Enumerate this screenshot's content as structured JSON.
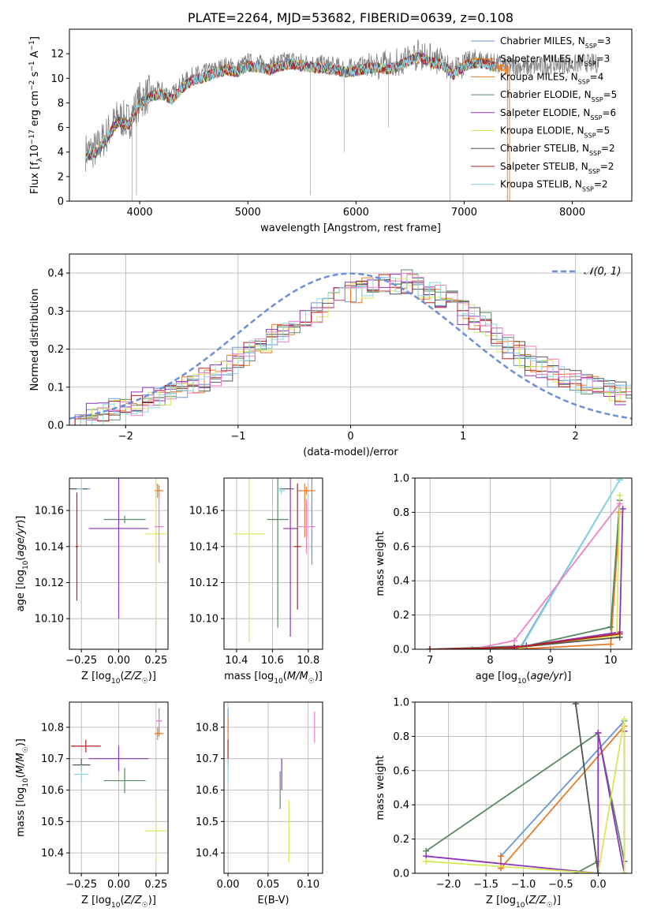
{
  "colors": {
    "Chabrier MILES": "#6a96d8",
    "Salpeter MILES": "#e87b2a",
    "Kroupa MILES": "#e87b2a",
    "Chabrier ELODIE": "#5a8a64",
    "Salpeter ELODIE": "#8e35b8",
    "Kroupa ELODIE": "#d8e858",
    "Chabrier STELIB": "#555555",
    "Salpeter STELIB": "#b52020",
    "Kroupa STELIB": "#8ad6e4",
    "pink": "#ee80c8",
    "normal": "#6c8fd6",
    "grid": "#b0b0b0"
  },
  "chart_data": [
    {
      "type": "line",
      "title": "PLATE=2264, MJD=53682, FIBERID=0639, z=0.108",
      "xlabel": "wavelength [Angstrom, rest frame]",
      "ylabel": "Flux [f_λ 10^-17 erg cm^-2 s^-1 A^-1]",
      "xlim": [
        3350,
        8550
      ],
      "ylim": [
        0,
        14
      ],
      "xticks": [
        "4000",
        "5000",
        "6000",
        "7000",
        "8000"
      ],
      "yticks": [
        "0",
        "2",
        "4",
        "6",
        "8",
        "10",
        "12"
      ],
      "grid": false,
      "legend": "top-right",
      "legend_entries": [
        {
          "name": "Chabrier MILES",
          "nssp": "3"
        },
        {
          "name": "Salpeter MILES",
          "nssp": "3"
        },
        {
          "name": "Kroupa MILES",
          "nssp": "4"
        },
        {
          "name": "Chabrier ELODIE",
          "nssp": "5"
        },
        {
          "name": "Salpeter ELODIE",
          "nssp": "6"
        },
        {
          "name": "Kroupa ELODIE",
          "nssp": "5"
        },
        {
          "name": "Chabrier STELIB",
          "nssp": "2"
        },
        {
          "name": "Salpeter STELIB",
          "nssp": "2"
        },
        {
          "name": "Kroupa STELIB",
          "nssp": "2"
        }
      ],
      "continuum": [
        [
          3500,
          4.0
        ],
        [
          3600,
          4.2
        ],
        [
          3700,
          5.5
        ],
        [
          3800,
          6.8
        ],
        [
          3900,
          6.5
        ],
        [
          4000,
          8.2
        ],
        [
          4100,
          8.8
        ],
        [
          4200,
          9.0
        ],
        [
          4300,
          8.6
        ],
        [
          4400,
          9.6
        ],
        [
          4500,
          10.2
        ],
        [
          4600,
          10.4
        ],
        [
          4700,
          10.7
        ],
        [
          4800,
          11.0
        ],
        [
          4900,
          10.8
        ],
        [
          5000,
          11.3
        ],
        [
          5100,
          11.2
        ],
        [
          5200,
          11.0
        ],
        [
          5300,
          11.3
        ],
        [
          5400,
          11.5
        ],
        [
          5500,
          11.3
        ],
        [
          5600,
          11.2
        ],
        [
          5700,
          11.1
        ],
        [
          5800,
          11.0
        ],
        [
          5900,
          10.8
        ],
        [
          6000,
          10.9
        ],
        [
          6100,
          11.1
        ],
        [
          6200,
          11.2
        ],
        [
          6300,
          11.0
        ],
        [
          6400,
          11.3
        ],
        [
          6500,
          11.8
        ],
        [
          6600,
          12.0
        ],
        [
          6700,
          11.6
        ],
        [
          6800,
          11.4
        ],
        [
          6900,
          10.6
        ],
        [
          7000,
          11.3
        ],
        [
          7100,
          11.6
        ],
        [
          7200,
          11.5
        ],
        [
          7300,
          11.2
        ],
        [
          7400,
          11.0
        ],
        [
          7500,
          11.0
        ],
        [
          7600,
          10.9
        ],
        [
          7700,
          11.0
        ],
        [
          7800,
          11.1
        ],
        [
          7900,
          11.2
        ],
        [
          8000,
          11.1
        ],
        [
          8100,
          11.3
        ],
        [
          8200,
          11.2
        ]
      ]
    },
    {
      "type": "bar",
      "xlabel": "(data-model)/error",
      "ylabel": "Normed distribution",
      "xlim": [
        -2.5,
        2.5
      ],
      "ylim": [
        0,
        0.45
      ],
      "xticks": [
        "−2",
        "−1",
        "0",
        "1",
        "2"
      ],
      "yticks": [
        "0.0",
        "0.1",
        "0.2",
        "0.3",
        "0.4"
      ],
      "grid": true,
      "legend": "top-right",
      "normal_label": "𝒩(0, 1)",
      "bins": [
        -2.5,
        -2.4,
        -2.3,
        -2.2,
        -2.1,
        -2.0,
        -1.9,
        -1.8,
        -1.7,
        -1.6,
        -1.5,
        -1.4,
        -1.3,
        -1.2,
        -1.1,
        -1.0,
        -0.9,
        -0.8,
        -0.7,
        -0.6,
        -0.5,
        -0.4,
        -0.3,
        -0.2,
        -0.1,
        0.0,
        0.1,
        0.2,
        0.3,
        0.4,
        0.5,
        0.6,
        0.7,
        0.8,
        0.9,
        1.0,
        1.1,
        1.2,
        1.3,
        1.4,
        1.5,
        1.6,
        1.7,
        1.8,
        1.9,
        2.0,
        2.1,
        2.2,
        2.3,
        2.4,
        2.5
      ],
      "histogram": [
        0.02,
        0.03,
        0.03,
        0.04,
        0.05,
        0.05,
        0.06,
        0.07,
        0.08,
        0.09,
        0.1,
        0.11,
        0.12,
        0.14,
        0.16,
        0.18,
        0.2,
        0.22,
        0.24,
        0.26,
        0.28,
        0.3,
        0.31,
        0.33,
        0.34,
        0.35,
        0.36,
        0.37,
        0.37,
        0.38,
        0.37,
        0.36,
        0.35,
        0.33,
        0.31,
        0.29,
        0.27,
        0.25,
        0.22,
        0.2,
        0.18,
        0.16,
        0.15,
        0.13,
        0.12,
        0.11,
        0.1,
        0.09,
        0.09,
        0.08
      ]
    },
    {
      "type": "scatter",
      "xlabel": "Z [log10(Z/Z☉)]",
      "ylabel": "age  [log10(age/yr)]",
      "xlim": [
        -0.33,
        0.33
      ],
      "ylim": [
        10.083,
        10.178
      ],
      "xticks": [
        "−0.25",
        "0.00",
        "0.25"
      ],
      "yticks": [
        "10.10",
        "10.12",
        "10.14",
        "10.16"
      ],
      "grid": true,
      "points": [
        {
          "model": "Chabrier MILES",
          "x": -0.27,
          "y": 10.172,
          "xerr": 0.08,
          "yerr": 0.0
        },
        {
          "model": "Salpeter MILES",
          "x": 0.26,
          "y": 10.171,
          "xerr": 0.02,
          "yerr": 0.004
        },
        {
          "model": "Kroupa MILES",
          "x": 0.27,
          "y": 10.171,
          "xerr": 0.03,
          "yerr": 0.003
        },
        {
          "model": "Chabrier ELODIE",
          "x": 0.04,
          "y": 10.155,
          "xerr": 0.14,
          "yerr": 0.002
        },
        {
          "model": "Salpeter ELODIE",
          "x": -0.0,
          "y": 10.15,
          "xerr": 0.2,
          "yerr": 0.05
        },
        {
          "model": "Kroupa ELODIE",
          "x": 0.25,
          "y": 10.147,
          "xerr": 0.07,
          "yerr": 0.05
        },
        {
          "model": "Chabrier STELIB",
          "x": -0.27,
          "y": 10.172,
          "xerr": 0.06,
          "yerr": 0.0
        },
        {
          "model": "Salpeter STELIB",
          "x": -0.28,
          "y": 10.14,
          "xerr": 0.01,
          "yerr": 0.03
        },
        {
          "model": "Kroupa STELIB",
          "x": -0.26,
          "y": 10.172,
          "xerr": 0.02,
          "yerr": 0.0
        },
        {
          "model": "pink",
          "x": 0.27,
          "y": 10.151,
          "xerr": 0.03,
          "yerr": 0.02
        }
      ]
    },
    {
      "type": "scatter",
      "xlabel": "mass [log10(M/M☉)]",
      "ylabel": "",
      "xlim": [
        10.33,
        10.88
      ],
      "ylim": [
        10.083,
        10.178
      ],
      "xticks": [
        "10.4",
        "10.6",
        "10.8"
      ],
      "yticks": [
        "10.10",
        "10.12",
        "10.14",
        "10.16"
      ],
      "grid": true,
      "points": [
        {
          "model": "Chabrier MILES",
          "x": 10.82,
          "y": 10.16,
          "xerr": 0.0,
          "yerr": 0.03
        },
        {
          "model": "Salpeter MILES",
          "x": 10.78,
          "y": 10.16,
          "xerr": 0.0,
          "yerr": 0.015
        },
        {
          "model": "Kroupa MILES",
          "x": 10.79,
          "y": 10.171,
          "xerr": 0.05,
          "yerr": 0.002
        },
        {
          "model": "Chabrier ELODIE",
          "x": 10.63,
          "y": 10.155,
          "xerr": 0.06,
          "yerr": 0.06
        },
        {
          "model": "Salpeter ELODIE",
          "x": 10.7,
          "y": 10.15,
          "xerr": 0.04,
          "yerr": 0.06
        },
        {
          "model": "Kroupa ELODIE",
          "x": 10.47,
          "y": 10.147,
          "xerr": 0.09,
          "yerr": 0.06
        },
        {
          "model": "Chabrier STELIB",
          "x": 10.68,
          "y": 10.172,
          "xerr": 0.04,
          "yerr": 0.0
        },
        {
          "model": "Salpeter STELIB",
          "x": 10.74,
          "y": 10.14,
          "xerr": 0.02,
          "yerr": 0.035
        },
        {
          "model": "Kroupa STELIB",
          "x": 10.65,
          "y": 10.171,
          "xerr": 0.02,
          "yerr": 0.002
        },
        {
          "model": "pink",
          "x": 10.79,
          "y": 10.151,
          "xerr": 0.05,
          "yerr": 0.015
        }
      ]
    },
    {
      "type": "line",
      "xlabel": "age  [log10(age/yr)]",
      "ylabel": "mass weight",
      "xlim": [
        6.75,
        10.35
      ],
      "ylim": [
        0,
        1.0
      ],
      "xticks": [
        "7",
        "8",
        "9",
        "10"
      ],
      "yticks": [
        "0.0",
        "0.2",
        "0.4",
        "0.6",
        "0.8",
        "1.0"
      ],
      "grid": true,
      "series": [
        {
          "model": "Chabrier MILES",
          "x": [
            7.0,
            8.5,
            10.15
          ],
          "y": [
            0.0,
            0.01,
            0.99
          ]
        },
        {
          "model": "Kroupa STELIB",
          "x": [
            7.0,
            8.5,
            10.15
          ],
          "y": [
            0.0,
            0.0,
            0.99
          ]
        },
        {
          "model": "Salpeter MILES",
          "x": [
            7.0,
            8.4,
            10.0,
            10.15
          ],
          "y": [
            0.0,
            0.0,
            0.03,
            0.8
          ]
        },
        {
          "model": "Chabrier ELODIE",
          "x": [
            7.0,
            8.6,
            10.0,
            10.15
          ],
          "y": [
            0.0,
            0.02,
            0.13,
            0.87
          ]
        },
        {
          "model": "Salpeter ELODIE",
          "x": [
            7.7,
            8.6,
            10.15,
            10.2
          ],
          "y": [
            0.0,
            0.02,
            0.1,
            0.82
          ]
        },
        {
          "model": "Kroupa ELODIE",
          "x": [
            7.0,
            8.5,
            10.1,
            10.15
          ],
          "y": [
            0.0,
            0.01,
            0.08,
            0.9
          ]
        },
        {
          "model": "pink",
          "x": [
            7.7,
            8.4,
            10.15
          ],
          "y": [
            0.0,
            0.05,
            0.85
          ]
        },
        {
          "model": "Chabrier STELIB",
          "x": [
            7.0,
            8.4,
            10.15
          ],
          "y": [
            0.0,
            0.01,
            0.07
          ]
        },
        {
          "model": "Salpeter STELIB",
          "x": [
            7.0,
            8.4,
            10.15
          ],
          "y": [
            0.0,
            0.01,
            0.09
          ]
        }
      ]
    },
    {
      "type": "scatter",
      "xlabel": "Z [log10(Z/Z☉)]",
      "ylabel": "mass [log10(M/M☉)]",
      "xlim": [
        -0.33,
        0.33
      ],
      "ylim": [
        10.335,
        10.88
      ],
      "xticks": [
        "−0.25",
        "0.00",
        "0.25"
      ],
      "yticks": [
        "10.4",
        "10.5",
        "10.6",
        "10.7",
        "10.8"
      ],
      "grid": true,
      "points": [
        {
          "model": "Chabrier MILES",
          "x": 0.27,
          "y": 10.82,
          "xerr": 0.02,
          "yerr": 0.04
        },
        {
          "model": "Salpeter MILES",
          "x": 0.26,
          "y": 10.78,
          "xerr": 0.02,
          "yerr": 0.02
        },
        {
          "model": "Kroupa MILES",
          "x": 0.27,
          "y": 10.78,
          "xerr": 0.03,
          "yerr": 0.01
        },
        {
          "model": "Chabrier ELODIE",
          "x": 0.04,
          "y": 10.63,
          "xerr": 0.14,
          "yerr": 0.04
        },
        {
          "model": "Salpeter ELODIE",
          "x": -0.0,
          "y": 10.7,
          "xerr": 0.2,
          "yerr": 0.04
        },
        {
          "model": "Kroupa ELODIE",
          "x": 0.25,
          "y": 10.47,
          "xerr": 0.07,
          "yerr": 0.1
        },
        {
          "model": "Chabrier STELIB",
          "x": -0.25,
          "y": 10.68,
          "xerr": 0.06,
          "yerr": 0.02
        },
        {
          "model": "Salpeter STELIB",
          "x": -0.22,
          "y": 10.74,
          "xerr": 0.1,
          "yerr": 0.02
        },
        {
          "model": "Kroupa STELIB",
          "x": -0.25,
          "y": 10.65,
          "xerr": 0.05,
          "yerr": 0.03
        },
        {
          "model": "pink",
          "x": 0.27,
          "y": 10.82,
          "xerr": 0.02,
          "yerr": 0.02
        }
      ]
    },
    {
      "type": "scatter",
      "xlabel": "E(B-V)",
      "ylabel": "",
      "xlim": [
        -0.005,
        0.118
      ],
      "ylim": [
        10.335,
        10.88
      ],
      "xticks": [
        "0.00",
        "0.05",
        "0.10"
      ],
      "yticks": [
        "10.4",
        "10.5",
        "10.6",
        "10.7",
        "10.8"
      ],
      "grid": true,
      "points": [
        {
          "model": "Chabrier MILES",
          "x": 0.0,
          "y": 10.82,
          "xerr": 0.0,
          "yerr": 0.04
        },
        {
          "model": "Salpeter MILES",
          "x": 0.0,
          "y": 10.78,
          "xerr": 0.0,
          "yerr": 0.05
        },
        {
          "model": "Chabrier ELODIE",
          "x": 0.065,
          "y": 10.6,
          "xerr": 0.0,
          "yerr": 0.06
        },
        {
          "model": "Salpeter ELODIE",
          "x": 0.067,
          "y": 10.65,
          "xerr": 0.0,
          "yerr": 0.05
        },
        {
          "model": "Kroupa ELODIE",
          "x": 0.076,
          "y": 10.47,
          "xerr": 0.0,
          "yerr": 0.1
        },
        {
          "model": "Salpeter STELIB",
          "x": 0.0,
          "y": 10.72,
          "xerr": 0.0,
          "yerr": 0.04
        },
        {
          "model": "Kroupa STELIB",
          "x": 0.0,
          "y": 10.66,
          "xerr": 0.0,
          "yerr": 0.04
        },
        {
          "model": "pink",
          "x": 0.108,
          "y": 10.8,
          "xerr": 0.0,
          "yerr": 0.05
        }
      ]
    },
    {
      "type": "line",
      "xlabel": "Z [log10(Z/Z☉)]",
      "ylabel": "mass weight",
      "xlim": [
        -2.45,
        0.45
      ],
      "ylim": [
        0,
        1.0
      ],
      "xticks": [
        "−2.0",
        "−1.5",
        "−1.0",
        "−0.5",
        "0.0"
      ],
      "yticks": [
        "0.0",
        "0.2",
        "0.4",
        "0.6",
        "0.8",
        "1.0"
      ],
      "grid": true,
      "series": [
        {
          "model": "Chabrier MILES",
          "x": [
            -1.3,
            0.35
          ],
          "y": [
            0.1,
            0.89
          ]
        },
        {
          "model": "Salpeter MILES",
          "x": [
            -1.3,
            0.35
          ],
          "y": [
            0.03,
            0.86
          ]
        },
        {
          "model": "Kroupa MILES",
          "x": [
            -1.3,
            -1.3
          ],
          "y": [
            0.03,
            0.1
          ]
        },
        {
          "model": "Chabrier ELODIE",
          "x": [
            -2.3,
            0.0,
            0.35
          ],
          "y": [
            0.13,
            0.82,
            0.07
          ]
        },
        {
          "model": "Chabrier ELODIE",
          "x": [
            -0.3,
            0.0
          ],
          "y": [
            0.0,
            0.07
          ]
        },
        {
          "model": "Salpeter ELODIE",
          "x": [
            -2.3,
            0.0,
            0.0,
            0.35,
            0.35
          ],
          "y": [
            0.1,
            0.0,
            0.82,
            0.0,
            0.83
          ]
        },
        {
          "model": "Kroupa ELODIE",
          "x": [
            -2.3,
            0.0,
            0.35,
            0.35
          ],
          "y": [
            0.07,
            0.0,
            0.9,
            0.0
          ]
        },
        {
          "model": "Kroupa STELIB",
          "x": [
            -0.3,
            0.0
          ],
          "y": [
            0.99,
            0.0
          ]
        },
        {
          "model": "Chabrier STELIB",
          "x": [
            -0.3,
            0.0
          ],
          "y": [
            0.99,
            0.0
          ]
        }
      ]
    }
  ]
}
